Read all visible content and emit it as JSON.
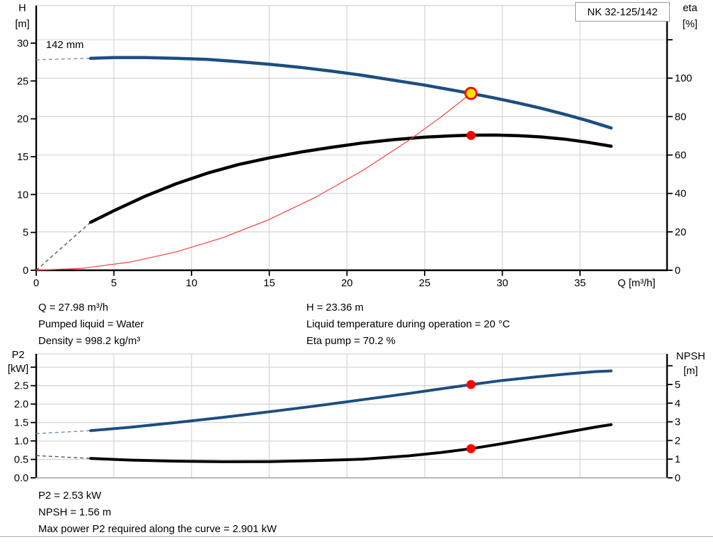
{
  "pump_badge": "NK 32-125/142",
  "colors": {
    "curve_blue": "#1c4e80",
    "curve_black": "#000000",
    "system_red": "#fa3c3c",
    "marker_red": "#ff0000",
    "marker_yellow": "#ffe100",
    "grid": "#d4d4d4",
    "axis": "#000000"
  },
  "info_top": {
    "left": [
      "Q = 27.98 m³/h",
      "Pumped liquid = Water",
      "Density = 998.2 kg/m³"
    ],
    "right": [
      "H = 23.36 m",
      "Liquid temperature during operation = 20 °C",
      "Eta pump = 70.2 %"
    ]
  },
  "info_bottom": [
    "P2 = 2.53 kW",
    "NPSH = 1.56 m",
    "Max power P2 required along the curve = 2.901 kW"
  ],
  "chart_data": [
    {
      "type": "line",
      "name": "hq-eta-chart",
      "title": "NK 32-125/142",
      "annotation": "142 mm",
      "axes": {
        "x": {
          "label": "Q [m³/h]",
          "min": 0,
          "max": 40.6,
          "ticks": [
            [
              0,
              "0"
            ],
            [
              5,
              "5"
            ],
            [
              10,
              "10"
            ],
            [
              15,
              "15"
            ],
            [
              20,
              "20"
            ],
            [
              25,
              "25"
            ],
            [
              30,
              "30"
            ],
            [
              35,
              "35"
            ]
          ]
        },
        "left": {
          "label": [
            "H",
            "[m]"
          ],
          "min": 0,
          "max": 34.96,
          "ticks": [
            [
              0,
              "0"
            ],
            [
              5,
              "5"
            ],
            [
              10,
              "10"
            ],
            [
              15,
              "15"
            ],
            [
              20,
              "20"
            ],
            [
              25,
              "25"
            ],
            [
              30,
              "30"
            ]
          ]
        },
        "right": {
          "label": [
            "eta",
            "[%]"
          ],
          "min": 0,
          "max": 137.8,
          "ticks": [
            [
              0,
              "0"
            ],
            [
              20,
              "20"
            ],
            [
              40,
              "40"
            ],
            [
              60,
              "60"
            ],
            [
              80,
              "80"
            ],
            [
              100,
              "100"
            ],
            [
              120,
              ""
            ]
          ]
        }
      },
      "grid_y_axis": "right",
      "series": [
        {
          "name": "head-curve",
          "axis": "left",
          "color": "#1c4e80",
          "width": 4.5,
          "lead": [
            [
              0,
              27.8
            ],
            [
              1.8,
              27.9
            ],
            [
              3.5,
              28.0
            ]
          ],
          "lead_color": "#7a8fa6",
          "points": [
            [
              3.5,
              28.0
            ],
            [
              5,
              28.1
            ],
            [
              7,
              28.1
            ],
            [
              9,
              28.0
            ],
            [
              11,
              27.85
            ],
            [
              13,
              27.55
            ],
            [
              15,
              27.2
            ],
            [
              17,
              26.8
            ],
            [
              19,
              26.3
            ],
            [
              21,
              25.75
            ],
            [
              23,
              25.1
            ],
            [
              25,
              24.45
            ],
            [
              26.5,
              23.9
            ],
            [
              27.98,
              23.36
            ],
            [
              29.5,
              22.75
            ],
            [
              31,
              22.1
            ],
            [
              32.5,
              21.4
            ],
            [
              34,
              20.6
            ],
            [
              35.5,
              19.75
            ],
            [
              37,
              18.8
            ]
          ]
        },
        {
          "name": "efficiency-curve",
          "axis": "right",
          "color": "#000000",
          "width": 4.5,
          "lead": [
            [
              0,
              0
            ],
            [
              3.5,
              25
            ]
          ],
          "lead_color": "#555555",
          "points": [
            [
              3.5,
              25
            ],
            [
              5,
              31
            ],
            [
              7,
              38.5
            ],
            [
              9,
              45
            ],
            [
              11,
              50.5
            ],
            [
              13,
              55
            ],
            [
              15,
              58.5
            ],
            [
              17,
              61.5
            ],
            [
              19,
              64
            ],
            [
              21,
              66.3
            ],
            [
              23,
              68
            ],
            [
              25,
              69.3
            ],
            [
              27,
              70.1
            ],
            [
              28,
              70.3
            ],
            [
              29.5,
              70.4
            ],
            [
              31,
              70.1
            ],
            [
              32.5,
              69.4
            ],
            [
              34,
              68.3
            ],
            [
              35.5,
              66.6
            ],
            [
              37,
              64.6
            ]
          ]
        },
        {
          "name": "system-curve",
          "axis": "left",
          "color": "#fa3c3c",
          "width": 1.2,
          "points": [
            [
              0,
              0
            ],
            [
              3,
              0.27
            ],
            [
              6,
              1.07
            ],
            [
              9,
              2.42
            ],
            [
              12,
              4.3
            ],
            [
              15,
              6.71
            ],
            [
              18,
              9.67
            ],
            [
              21,
              13.16
            ],
            [
              24,
              17.19
            ],
            [
              26,
              20.17
            ],
            [
              27.98,
              23.36
            ]
          ]
        }
      ],
      "markers": [
        {
          "name": "duty-point-head",
          "axis": "left",
          "x": 27.98,
          "y": 23.36,
          "r": 8,
          "fill": "#ffe100",
          "stroke": "#ff0000",
          "stroke_width": 2.8
        },
        {
          "name": "duty-point-eta",
          "axis": "right",
          "x": 27.98,
          "y": 70.2,
          "r": 6.5,
          "fill": "#ff0000"
        }
      ]
    },
    {
      "type": "line",
      "name": "p2-npsh-chart",
      "axes": {
        "x": {
          "label": "",
          "min": 0,
          "max": 40.6,
          "ticks": [
            [
              5,
              ""
            ],
            [
              10,
              ""
            ],
            [
              15,
              ""
            ],
            [
              20,
              ""
            ],
            [
              25,
              ""
            ],
            [
              30,
              ""
            ],
            [
              35,
              ""
            ]
          ]
        },
        "left": {
          "label": [
            "P2",
            "[kW]"
          ],
          "min": 0,
          "max": 3.3625,
          "ticks": [
            [
              0,
              "0.0"
            ],
            [
              0.5,
              "0.5"
            ],
            [
              1,
              "1.0"
            ],
            [
              1.5,
              "1.5"
            ],
            [
              2,
              "2.0"
            ],
            [
              2.5,
              "2.5"
            ],
            [
              3,
              ""
            ]
          ]
        },
        "right": {
          "label": [
            "NPSH",
            "[m]"
          ],
          "min": 0,
          "max": 6.64,
          "ticks": [
            [
              0,
              "0"
            ],
            [
              1,
              "1"
            ],
            [
              2,
              "2"
            ],
            [
              3,
              "3"
            ],
            [
              4,
              "4"
            ],
            [
              5,
              "5"
            ],
            [
              6,
              ""
            ]
          ]
        }
      },
      "grid_y_axis": "left",
      "series": [
        {
          "name": "p2-curve",
          "axis": "left",
          "color": "#1c4e80",
          "width": 4,
          "lead": [
            [
              0,
              1.2
            ],
            [
              3.5,
              1.28
            ]
          ],
          "lead_color": "#7a8fa6",
          "points": [
            [
              3.5,
              1.28
            ],
            [
              6,
              1.37
            ],
            [
              9,
              1.5
            ],
            [
              12,
              1.64
            ],
            [
              15,
              1.79
            ],
            [
              18,
              1.95
            ],
            [
              21,
              2.12
            ],
            [
              24,
              2.29
            ],
            [
              26,
              2.41
            ],
            [
              27.98,
              2.53
            ],
            [
              30,
              2.64
            ],
            [
              32,
              2.73
            ],
            [
              34,
              2.81
            ],
            [
              36,
              2.88
            ],
            [
              37,
              2.9
            ]
          ]
        },
        {
          "name": "npsh-curve",
          "axis": "right",
          "color": "#000000",
          "width": 4,
          "lead": [
            [
              0,
              1.19
            ],
            [
              3.5,
              1.04
            ]
          ],
          "lead_color": "#555555",
          "points": [
            [
              3.5,
              1.04
            ],
            [
              6,
              0.95
            ],
            [
              9,
              0.89
            ],
            [
              12,
              0.86
            ],
            [
              15,
              0.87
            ],
            [
              18,
              0.92
            ],
            [
              21,
              1.0
            ],
            [
              24,
              1.18
            ],
            [
              26,
              1.35
            ],
            [
              27.98,
              1.56
            ],
            [
              30,
              1.83
            ],
            [
              32,
              2.12
            ],
            [
              34,
              2.42
            ],
            [
              36,
              2.72
            ],
            [
              37,
              2.85
            ]
          ]
        }
      ],
      "markers": [
        {
          "name": "duty-point-p2",
          "axis": "left",
          "x": 27.98,
          "y": 2.53,
          "r": 6.5,
          "fill": "#ff0000"
        },
        {
          "name": "duty-point-npsh",
          "axis": "right",
          "x": 27.98,
          "y": 1.56,
          "r": 6.5,
          "fill": "#ff0000"
        }
      ]
    }
  ]
}
